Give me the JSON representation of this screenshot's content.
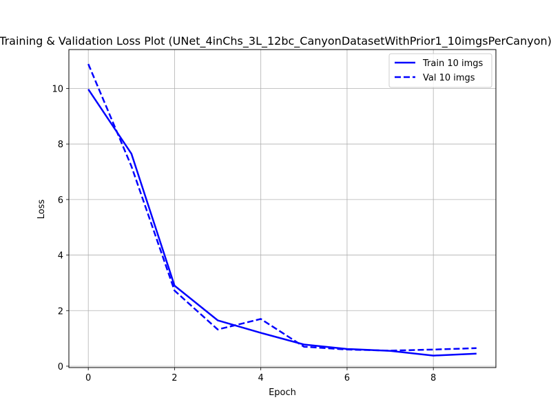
{
  "chart_data": {
    "type": "line",
    "title": "Training & Validation Loss Plot (UNet_4inChs_3L_12bc_CanyonDatasetWithPrior1_10imgsPerCanyon)",
    "xlabel": "Epoch",
    "ylabel": "Loss",
    "x": [
      0,
      1,
      2,
      3,
      4,
      5,
      6,
      7,
      8,
      9
    ],
    "xlim": [
      -0.45,
      9.45
    ],
    "ylim": [
      -0.05,
      11.4
    ],
    "xticks": [
      0,
      2,
      4,
      6,
      8
    ],
    "yticks": [
      0,
      2,
      4,
      6,
      8,
      10
    ],
    "grid": true,
    "legend_position": "top-right",
    "series": [
      {
        "name": "Train 10 imgs",
        "style": "solid",
        "color": "#0000ff",
        "values": [
          9.97,
          7.65,
          2.9,
          1.65,
          1.2,
          0.78,
          0.62,
          0.55,
          0.38,
          0.45
        ]
      },
      {
        "name": "Val 10 imgs",
        "style": "dashed",
        "color": "#0000ff",
        "values": [
          10.88,
          7.2,
          2.72,
          1.32,
          1.7,
          0.7,
          0.6,
          0.56,
          0.6,
          0.65
        ]
      }
    ]
  }
}
